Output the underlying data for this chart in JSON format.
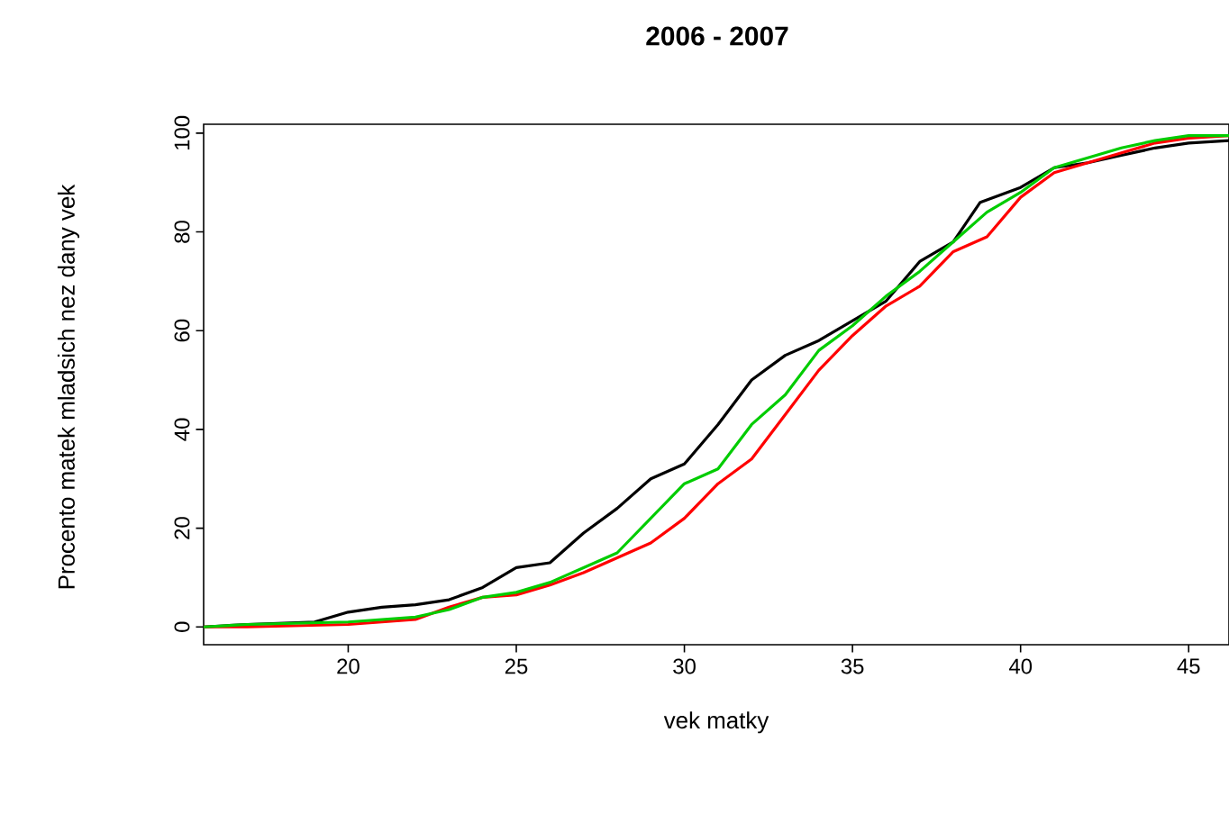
{
  "chart_data": {
    "type": "line",
    "title": "2006  -  2007",
    "xlabel": "vek matky",
    "ylabel": "Procento matek mladsich nez dany vek",
    "xlim": [
      15.7,
      46.2
    ],
    "ylim": [
      -3.6,
      101.8
    ],
    "xticks": [
      20,
      25,
      30,
      35,
      40,
      45
    ],
    "yticks": [
      0,
      20,
      40,
      60,
      80,
      100
    ],
    "grid": false,
    "marker": "none",
    "line_style": "solid",
    "series": [
      {
        "color": "#000000",
        "x": [
          15.7,
          17,
          19,
          20,
          21,
          22,
          23,
          24,
          25,
          26,
          27,
          28,
          29,
          30,
          31,
          32,
          33,
          34,
          35,
          36,
          37,
          38,
          38.8,
          40,
          41,
          42,
          43,
          44,
          45,
          46.2
        ],
        "values": [
          0,
          0.5,
          1,
          3,
          4,
          4.5,
          5.5,
          8,
          12,
          13,
          19,
          24,
          30,
          33,
          41,
          50,
          55,
          58,
          62,
          66,
          74,
          78,
          86,
          89,
          93,
          94,
          95.5,
          97,
          98,
          98.5
        ]
      },
      {
        "color": "#ff0000",
        "x": [
          15.7,
          17,
          20,
          22,
          23,
          24,
          25,
          26,
          27,
          28,
          29,
          30,
          31,
          32,
          33,
          34,
          35,
          36,
          37,
          38,
          39,
          40,
          41,
          42,
          43,
          44,
          45,
          46.2
        ],
        "values": [
          0,
          0,
          0.5,
          1.5,
          4,
          6,
          6.5,
          8.5,
          11,
          14,
          17,
          22,
          29,
          34,
          43,
          52,
          59,
          65,
          69,
          76,
          79,
          87,
          92,
          94,
          96,
          98,
          99,
          99.5
        ]
      },
      {
        "color": "#00cc00",
        "x": [
          15.7,
          17,
          20,
          22,
          23,
          24,
          25,
          26,
          27,
          28,
          29,
          30,
          31,
          32,
          33,
          34,
          35,
          36,
          37,
          38,
          39,
          40,
          41,
          42,
          43,
          44,
          45,
          46.2
        ],
        "values": [
          0,
          0.5,
          1,
          2,
          3.5,
          6,
          7,
          9,
          12,
          15,
          22,
          29,
          32,
          41,
          47,
          56,
          61,
          67,
          72,
          78,
          84,
          88,
          93,
          95,
          97,
          98.5,
          99.5,
          99.5
        ]
      }
    ]
  }
}
